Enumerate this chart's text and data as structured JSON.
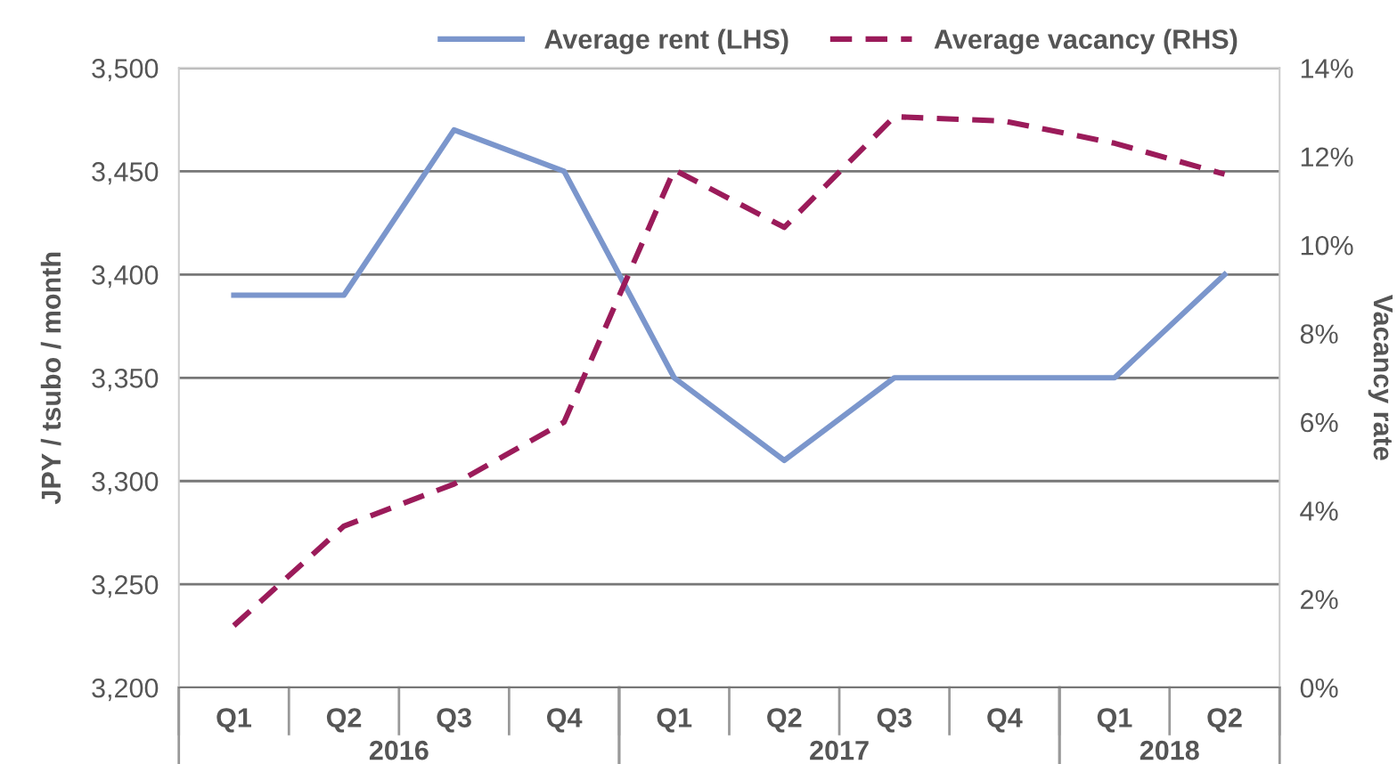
{
  "chart_data": {
    "type": "line",
    "categories": [
      "Q1",
      "Q2",
      "Q3",
      "Q4",
      "Q1",
      "Q2",
      "Q3",
      "Q4",
      "Q1",
      "Q2"
    ],
    "series": [
      {
        "name": "Average rent (LHS)",
        "color": "#7b96cc",
        "line_style": "solid",
        "values": [
          3390,
          3390,
          3470,
          3450,
          3350,
          3310,
          3350,
          3350,
          3350,
          3400
        ]
      },
      {
        "name": "Average vacancy (RHS)",
        "color": "#9b1b5a",
        "line_style": "dashed",
        "axis": "y2",
        "values": [
          1.4,
          3.65,
          4.6,
          6.0,
          11.7,
          10.4,
          12.9,
          12.8,
          12.3,
          11.6
        ]
      }
    ],
    "ylabel": "JPY / tsubo / month",
    "y2label": "Vacancy rate",
    "ylim": [
      3200,
      3500
    ],
    "yticks": [
      {
        "value": 3200,
        "label": "3,200"
      },
      {
        "value": 3250,
        "label": "3,250"
      },
      {
        "value": 3300,
        "label": "3,300"
      },
      {
        "value": 3350,
        "label": "3,350"
      },
      {
        "value": 3400,
        "label": "3,400"
      },
      {
        "value": 3450,
        "label": "3,450"
      },
      {
        "value": 3500,
        "label": "3,500"
      }
    ],
    "y2lim": [
      0,
      14
    ],
    "y2ticks": [
      {
        "value": 0,
        "label": "0%"
      },
      {
        "value": 2,
        "label": "2%"
      },
      {
        "value": 4,
        "label": "4%"
      },
      {
        "value": 6,
        "label": "6%"
      },
      {
        "value": 8,
        "label": "8%"
      },
      {
        "value": 10,
        "label": "10%"
      },
      {
        "value": 12,
        "label": "12%"
      },
      {
        "value": 14,
        "label": "14%"
      }
    ],
    "annotations": [
      "2016",
      "2017",
      "2018"
    ],
    "grid": "y",
    "legend": "top",
    "marker": "none"
  }
}
